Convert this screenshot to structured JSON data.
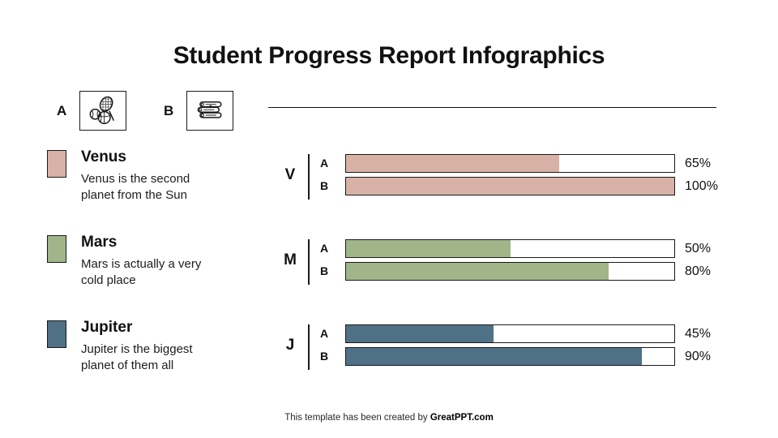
{
  "slide": {
    "title": "Student Progress Report Infographics",
    "footer": {
      "prefix": "This template has been created by ",
      "brand": "GreatPPT.com"
    }
  },
  "key": {
    "items": [
      {
        "label": "A",
        "icon": "sports-icon"
      },
      {
        "label": "B",
        "icon": "books-icon"
      }
    ]
  },
  "legend": [
    {
      "name": "Venus",
      "description": "Venus is the second planet from the Sun",
      "color": "#D8B2A6"
    },
    {
      "name": "Mars",
      "description": "Mars is actually a very cold place",
      "color": "#A0B689"
    },
    {
      "name": "Jupiter",
      "description": "Jupiter is the biggest planet of them all",
      "color": "#4F7187"
    }
  ],
  "chart_data": {
    "type": "bar",
    "orientation": "horizontal",
    "value_format": "percent",
    "xlim": [
      0,
      100
    ],
    "categories": [
      "A",
      "B"
    ],
    "groups": [
      {
        "label": "V",
        "planet": "Venus",
        "color": "#D8B2A6",
        "bars": [
          {
            "label": "A",
            "value": 65,
            "value_label": "65%"
          },
          {
            "label": "B",
            "value": 100,
            "value_label": "100%"
          }
        ]
      },
      {
        "label": "M",
        "planet": "Mars",
        "color": "#A0B689",
        "bars": [
          {
            "label": "A",
            "value": 50,
            "value_label": "50%"
          },
          {
            "label": "B",
            "value": 80,
            "value_label": "80%"
          }
        ]
      },
      {
        "label": "J",
        "planet": "Jupiter",
        "color": "#4F7187",
        "bars": [
          {
            "label": "A",
            "value": 45,
            "value_label": "45%"
          },
          {
            "label": "B",
            "value": 90,
            "value_label": "90%"
          }
        ]
      }
    ]
  }
}
